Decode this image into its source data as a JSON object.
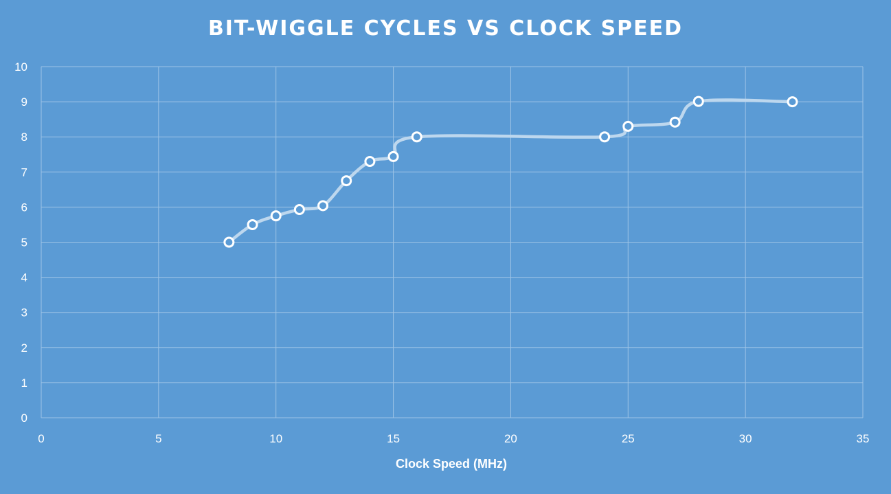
{
  "chart_data": {
    "type": "line",
    "title": "BIT-WIGGLE CYCLES VS CLOCK SPEED",
    "xlabel": "Clock Speed (MHz)",
    "ylabel": "",
    "xlim": [
      0,
      35
    ],
    "ylim": [
      0,
      10
    ],
    "x_ticks": [
      0,
      5,
      10,
      15,
      20,
      25,
      30,
      35
    ],
    "y_ticks": [
      0,
      1,
      2,
      3,
      4,
      5,
      6,
      7,
      8,
      9,
      10
    ],
    "grid": true,
    "smoothed": true,
    "series": [
      {
        "x": [
          8,
          9,
          10,
          11,
          12,
          13,
          14,
          15,
          16,
          24,
          25,
          27,
          28,
          32
        ],
        "y": [
          5,
          5.5,
          5.75,
          5.93,
          6.04,
          6.75,
          7.3,
          7.44,
          8,
          8,
          8.3,
          8.42,
          9.01,
          9
        ]
      }
    ],
    "colors": {
      "background": "#5b9bd5",
      "gridline": "#9dc3e6",
      "line": "#bdd7ee",
      "marker_fill": "#5b9bd5",
      "marker_stroke": "#ffffff",
      "text": "#ffffff"
    }
  }
}
